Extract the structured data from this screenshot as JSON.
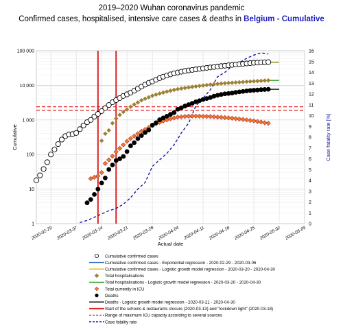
{
  "title_line1": "2019–2020 Wuhan coronavirus pandemic",
  "title_line2_prefix": "Confirmed cases, hospitalised, intensive care cases & deaths in ",
  "title_line2_highlight": "Belgium - Cumulative",
  "colors": {
    "confirmed_marker_fill": "#ffffff",
    "hosp_marker_fill": "#8a8a3a",
    "icu_marker_fill": "#f07a2a",
    "icu_marker_stroke": "#a33",
    "deaths": "#000000",
    "exp_line": "#2c6fb7",
    "logistic_confirmed": "#e8b800",
    "logistic_hosp": "#2aa02a",
    "logistic_deaths": "#000000",
    "closure": "#e02020",
    "icu_capacity": "#e02020",
    "cfr": "#1a1aa0",
    "title_highlight": "#1f1fbf"
  },
  "chart_data": {
    "type": "scatter",
    "ylabel_left": "Cumulative",
    "ylabel_right": "Case fatality rate [%]",
    "xlabel": "Actual date",
    "y_left_scale": "log",
    "y_left_ticks": [
      "1",
      "10",
      "100",
      "1 000",
      "10 000",
      "100 000"
    ],
    "y_left_range": [
      1,
      100000
    ],
    "y_right_ticks": [
      "0",
      "1",
      "2",
      "3",
      "4",
      "5",
      "6",
      "7",
      "8",
      "9",
      "10",
      "11",
      "12",
      "13",
      "14",
      "15",
      "16"
    ],
    "y_right_range": [
      0,
      16
    ],
    "x_ticks": [
      "2020-02-29",
      "2020-03-07",
      "2020-03-14",
      "2020-03-21",
      "2020-03-28",
      "2020-04-04",
      "2020-04-11",
      "2020-04-18",
      "2020-04-25",
      "2020-05-02",
      "2020-05-09"
    ],
    "x_range": [
      "2020-02-25",
      "2020-05-09"
    ],
    "grid": true,
    "legend_position": "bottom",
    "vertical_markers": [
      {
        "date": "2020-03-13",
        "label": "schools closure"
      },
      {
        "date": "2020-03-18",
        "label": "lockdown light"
      }
    ],
    "icu_capacity_range": [
      1900,
      2400
    ],
    "series": [
      {
        "name": "Cumulative confirmed cases",
        "kind": "markers",
        "x": [
          "2020-02-25",
          "2020-02-26",
          "2020-02-27",
          "2020-02-28",
          "2020-02-29",
          "2020-03-01",
          "2020-03-02",
          "2020-03-03",
          "2020-03-04",
          "2020-03-05",
          "2020-03-06",
          "2020-03-07",
          "2020-03-08",
          "2020-03-09",
          "2020-03-10",
          "2020-03-11",
          "2020-03-12",
          "2020-03-13",
          "2020-03-14",
          "2020-03-15",
          "2020-03-16",
          "2020-03-17",
          "2020-03-18",
          "2020-03-19",
          "2020-03-20",
          "2020-03-21",
          "2020-03-22",
          "2020-03-23",
          "2020-03-24",
          "2020-03-25",
          "2020-03-26",
          "2020-03-27",
          "2020-03-28",
          "2020-03-29",
          "2020-03-30",
          "2020-03-31",
          "2020-04-01",
          "2020-04-02",
          "2020-04-03",
          "2020-04-04",
          "2020-04-05",
          "2020-04-06",
          "2020-04-07",
          "2020-04-08",
          "2020-04-09",
          "2020-04-10",
          "2020-04-11",
          "2020-04-12",
          "2020-04-13",
          "2020-04-14",
          "2020-04-15",
          "2020-04-16",
          "2020-04-17",
          "2020-04-18",
          "2020-04-19",
          "2020-04-20",
          "2020-04-21",
          "2020-04-22",
          "2020-04-23",
          "2020-04-24",
          "2020-04-25",
          "2020-04-26",
          "2020-04-27",
          "2020-04-28",
          "2020-04-29"
        ],
        "y": [
          18,
          25,
          38,
          60,
          100,
          140,
          200,
          270,
          340,
          380,
          390,
          420,
          540,
          690,
          860,
          1000,
          1250,
          1490,
          1800,
          2200,
          2700,
          3250,
          3750,
          4300,
          4950,
          5500,
          6200,
          7000,
          8000,
          9200,
          10500,
          11800,
          13000,
          14500,
          16200,
          17800,
          19300,
          20800,
          22200,
          23500,
          24800,
          26000,
          27000,
          28000,
          29000,
          30000,
          31000,
          32000,
          33000,
          34000,
          35000,
          36000,
          37000,
          38000,
          39000,
          40000,
          41000,
          42000,
          43000,
          44000,
          45000,
          45500,
          46000,
          46500,
          47000
        ]
      },
      {
        "name": "Total hospitalisations",
        "kind": "markers",
        "x": [
          "2020-03-14",
          "2020-03-15",
          "2020-03-16",
          "2020-03-17",
          "2020-03-18",
          "2020-03-19",
          "2020-03-20",
          "2020-03-21",
          "2020-03-22",
          "2020-03-23",
          "2020-03-24",
          "2020-03-25",
          "2020-03-26",
          "2020-03-27",
          "2020-03-28",
          "2020-03-29",
          "2020-03-30",
          "2020-03-31",
          "2020-04-01",
          "2020-04-02",
          "2020-04-03",
          "2020-04-04",
          "2020-04-05",
          "2020-04-06",
          "2020-04-07",
          "2020-04-08",
          "2020-04-09",
          "2020-04-10",
          "2020-04-11",
          "2020-04-12",
          "2020-04-13",
          "2020-04-14",
          "2020-04-15",
          "2020-04-16",
          "2020-04-17",
          "2020-04-18",
          "2020-04-19",
          "2020-04-20",
          "2020-04-21",
          "2020-04-22",
          "2020-04-23",
          "2020-04-24",
          "2020-04-25",
          "2020-04-26",
          "2020-04-27",
          "2020-04-28",
          "2020-04-29"
        ],
        "y": [
          250,
          400,
          500,
          800,
          1100,
          1400,
          1700,
          2000,
          2400,
          2800,
          3200,
          3700,
          4100,
          4500,
          5000,
          5400,
          5800,
          6200,
          6600,
          7000,
          7400,
          7800,
          8100,
          8400,
          8700,
          9000,
          9300,
          9600,
          9900,
          10200,
          10500,
          10800,
          11000,
          11300,
          11500,
          11700,
          11900,
          12100,
          12300,
          12500,
          12700,
          12900,
          13100,
          13300,
          13500,
          13700,
          13900
        ]
      },
      {
        "name": "Total currently in ICU",
        "kind": "markers",
        "x": [
          "2020-03-11",
          "2020-03-12",
          "2020-03-13",
          "2020-03-14",
          "2020-03-15",
          "2020-03-16",
          "2020-03-17",
          "2020-03-18",
          "2020-03-19",
          "2020-03-20",
          "2020-03-21",
          "2020-03-22",
          "2020-03-23",
          "2020-03-24",
          "2020-03-25",
          "2020-03-26",
          "2020-03-27",
          "2020-03-28",
          "2020-03-29",
          "2020-03-30",
          "2020-03-31",
          "2020-04-01",
          "2020-04-02",
          "2020-04-03",
          "2020-04-04",
          "2020-04-05",
          "2020-04-06",
          "2020-04-07",
          "2020-04-08",
          "2020-04-09",
          "2020-04-10",
          "2020-04-11",
          "2020-04-12",
          "2020-04-13",
          "2020-04-14",
          "2020-04-15",
          "2020-04-16",
          "2020-04-17",
          "2020-04-18",
          "2020-04-19",
          "2020-04-20",
          "2020-04-21",
          "2020-04-22",
          "2020-04-23",
          "2020-04-24",
          "2020-04-25",
          "2020-04-26",
          "2020-04-27",
          "2020-04-28",
          "2020-04-29"
        ],
        "y": [
          20,
          22,
          24,
          30,
          55,
          70,
          90,
          120,
          150,
          190,
          240,
          290,
          340,
          400,
          470,
          530,
          600,
          690,
          770,
          850,
          930,
          1000,
          1080,
          1140,
          1200,
          1230,
          1260,
          1280,
          1290,
          1290,
          1280,
          1270,
          1260,
          1250,
          1230,
          1210,
          1190,
          1170,
          1150,
          1120,
          1090,
          1060,
          1030,
          1000,
          970,
          940,
          900,
          870,
          830,
          800
        ]
      },
      {
        "name": "Deaths",
        "kind": "markers",
        "x": [
          "2020-03-10",
          "2020-03-11",
          "2020-03-12",
          "2020-03-13",
          "2020-03-14",
          "2020-03-15",
          "2020-03-16",
          "2020-03-17",
          "2020-03-18",
          "2020-03-19",
          "2020-03-20",
          "2020-03-21",
          "2020-03-22",
          "2020-03-23",
          "2020-03-24",
          "2020-03-25",
          "2020-03-26",
          "2020-03-27",
          "2020-03-28",
          "2020-03-29",
          "2020-03-30",
          "2020-03-31",
          "2020-04-01",
          "2020-04-02",
          "2020-04-03",
          "2020-04-04",
          "2020-04-05",
          "2020-04-06",
          "2020-04-07",
          "2020-04-08",
          "2020-04-09",
          "2020-04-10",
          "2020-04-11",
          "2020-04-12",
          "2020-04-13",
          "2020-04-14",
          "2020-04-15",
          "2020-04-16",
          "2020-04-17",
          "2020-04-18",
          "2020-04-19",
          "2020-04-20",
          "2020-04-21",
          "2020-04-22",
          "2020-04-23",
          "2020-04-24",
          "2020-04-25",
          "2020-04-26",
          "2020-04-27",
          "2020-04-28",
          "2020-04-29"
        ],
        "y": [
          4,
          5,
          7,
          10,
          15,
          21,
          37,
          50,
          67,
          75,
          88,
          122,
          178,
          220,
          289,
          353,
          431,
          513,
          705,
          828,
          1011,
          1143,
          1283,
          1447,
          1632,
          2035,
          2240,
          2523,
          2761,
          3019,
          3346,
          3600,
          3903,
          4157,
          4440,
          4857,
          5163,
          5453,
          5683,
          5828,
          5998,
          6262,
          6490,
          6679,
          6917,
          7094,
          7207,
          7331,
          7501,
          7594,
          7703
        ]
      },
      {
        "name": "Case fatality rate",
        "kind": "line",
        "axis": "right",
        "x": [
          "2020-03-08",
          "2020-03-10",
          "2020-03-12",
          "2020-03-14",
          "2020-03-16",
          "2020-03-18",
          "2020-03-20",
          "2020-03-22",
          "2020-03-24",
          "2020-03-26",
          "2020-03-28",
          "2020-03-30",
          "2020-04-01",
          "2020-04-03",
          "2020-04-05",
          "2020-04-07",
          "2020-04-09",
          "2020-04-11",
          "2020-04-13",
          "2020-04-15",
          "2020-04-17",
          "2020-04-19",
          "2020-04-21",
          "2020-04-23",
          "2020-04-25",
          "2020-04-27",
          "2020-04-29"
        ],
        "y": [
          0.1,
          0.3,
          0.6,
          0.9,
          1.2,
          1.4,
          1.8,
          2.4,
          3.2,
          3.8,
          5.3,
          5.9,
          6.5,
          7.3,
          8.4,
          9.3,
          10.9,
          11.6,
          12.4,
          13.6,
          14.0,
          14.6,
          14.9,
          15.3,
          15.6,
          15.8,
          15.7
        ]
      },
      {
        "name": "Cumulative confirmed cases - Exponential regression - 2020-02-29 - 2020-03-06",
        "kind": "regression",
        "x": [
          "2020-04-29",
          "2020-05-02"
        ],
        "y": [
          46000,
          46000
        ]
      },
      {
        "name": "Cumulative confirmed cases - Logistic growth model regression - 2020-03-20 - 2020-04-30",
        "kind": "regression",
        "x": [
          "2020-04-29",
          "2020-05-02"
        ],
        "y": [
          47000,
          47000
        ]
      },
      {
        "name": "Total hospitalisations - Logistic growth model regression - 2020-03-20 - 2020-04-30",
        "kind": "regression",
        "x": [
          "2020-04-29",
          "2020-05-02"
        ],
        "y": [
          13900,
          13900
        ]
      },
      {
        "name": "Deaths - Logistic growth model regression - 2020-03-21 - 2020-04-30",
        "kind": "regression",
        "x": [
          "2020-04-29",
          "2020-05-02"
        ],
        "y": [
          7700,
          7700
        ]
      }
    ]
  },
  "legend": [
    {
      "key": "confirmed",
      "symbol": "circle-open",
      "label": "Cumulative confirmed cases"
    },
    {
      "key": "exp",
      "symbol": "line-blue",
      "label": "Cumulative confirmed cases - Exponential regression - 2020-02-29 - 2020-03-06"
    },
    {
      "key": "logc",
      "symbol": "line-yellow",
      "label": "Cumulative confirmed cases - Logistic growth model regression - 2020-03-20 - 2020-04-30"
    },
    {
      "key": "hosp",
      "symbol": "diamond-olive",
      "label": "Total hospitalisations"
    },
    {
      "key": "logh",
      "symbol": "line-green",
      "label": "Total hospitalisations - Logistic growth model regression - 2020-03-20 - 2020-04-30"
    },
    {
      "key": "icu",
      "symbol": "diamond-orange",
      "label": "Total currently in ICU"
    },
    {
      "key": "deaths",
      "symbol": "circle-black",
      "label": "Deaths"
    },
    {
      "key": "logd",
      "symbol": "line-black",
      "label": "Deaths - Logistic growth model regression - 2020-03-21 - 2020-04-30"
    },
    {
      "key": "closure",
      "symbol": "line-red",
      "label": "Start of the schools & restaurants closure (2020-03-13) and \"lockdown light\" (2020-03-18)"
    },
    {
      "key": "icucap",
      "symbol": "dash-red",
      "label": "Range of maximum ICU capacity according to several sources"
    },
    {
      "key": "cfr",
      "symbol": "dash-blue",
      "label": "Case fatality rate"
    }
  ]
}
